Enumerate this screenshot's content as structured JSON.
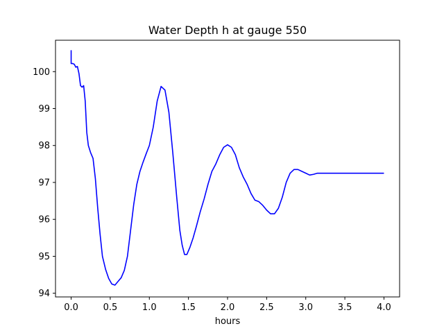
{
  "chart_data": {
    "type": "line",
    "title": "Water Depth h at gauge 550",
    "xlabel": "hours",
    "ylabel": "",
    "xlim": [
      -0.2,
      4.2
    ],
    "ylim": [
      93.9,
      100.85
    ],
    "xticks": [
      0.0,
      0.5,
      1.0,
      1.5,
      2.0,
      2.5,
      3.0,
      3.5,
      4.0
    ],
    "xtick_labels": [
      "0.0",
      "0.5",
      "1.0",
      "1.5",
      "2.0",
      "2.5",
      "3.0",
      "3.5",
      "4.0"
    ],
    "yticks": [
      94,
      95,
      96,
      97,
      98,
      99,
      100
    ],
    "ytick_labels": [
      "94",
      "95",
      "96",
      "97",
      "98",
      "99",
      "100"
    ],
    "grid": false,
    "series": [
      {
        "color": "#0000ff",
        "x": [
          0.0,
          0.0,
          0.02,
          0.04,
          0.06,
          0.08,
          0.1,
          0.12,
          0.14,
          0.16,
          0.18,
          0.2,
          0.22,
          0.25,
          0.28,
          0.31,
          0.34,
          0.37,
          0.4,
          0.44,
          0.48,
          0.52,
          0.56,
          0.6,
          0.64,
          0.68,
          0.72,
          0.76,
          0.8,
          0.84,
          0.88,
          0.92,
          0.96,
          1.0,
          1.05,
          1.1,
          1.15,
          1.2,
          1.25,
          1.3,
          1.35,
          1.39,
          1.42,
          1.45,
          1.48,
          1.52,
          1.56,
          1.6,
          1.65,
          1.7,
          1.75,
          1.8,
          1.85,
          1.9,
          1.95,
          2.0,
          2.05,
          2.1,
          2.15,
          2.2,
          2.25,
          2.3,
          2.35,
          2.4,
          2.45,
          2.5,
          2.55,
          2.6,
          2.65,
          2.7,
          2.75,
          2.8,
          2.85,
          2.9,
          2.95,
          3.0,
          3.05,
          3.1,
          3.15,
          3.2,
          3.25,
          3.3,
          3.35,
          3.4,
          3.45,
          3.5,
          3.55,
          3.6,
          3.65,
          3.7,
          3.75,
          3.8,
          3.85,
          3.9,
          3.95,
          4.0
        ],
        "y": [
          100.58,
          100.22,
          100.22,
          100.2,
          100.12,
          100.14,
          99.95,
          99.62,
          99.58,
          99.62,
          99.2,
          98.35,
          98.0,
          97.8,
          97.65,
          97.1,
          96.3,
          95.6,
          95.0,
          94.65,
          94.4,
          94.25,
          94.22,
          94.32,
          94.42,
          94.62,
          95.0,
          95.7,
          96.4,
          96.95,
          97.3,
          97.55,
          97.78,
          98.0,
          98.5,
          99.2,
          99.6,
          99.5,
          98.9,
          97.8,
          96.6,
          95.7,
          95.3,
          95.05,
          95.05,
          95.25,
          95.5,
          95.8,
          96.2,
          96.55,
          96.95,
          97.3,
          97.5,
          97.75,
          97.95,
          98.02,
          97.95,
          97.75,
          97.4,
          97.15,
          96.95,
          96.7,
          96.52,
          96.48,
          96.38,
          96.25,
          96.15,
          96.15,
          96.3,
          96.6,
          97.0,
          97.25,
          97.35,
          97.35,
          97.3,
          97.25,
          97.2,
          97.22,
          97.25,
          97.25,
          97.25,
          97.25,
          97.25,
          97.25,
          97.25,
          97.25,
          97.25,
          97.25,
          97.25,
          97.25,
          97.25,
          97.25,
          97.25,
          97.25,
          97.25,
          97.25
        ]
      }
    ]
  }
}
